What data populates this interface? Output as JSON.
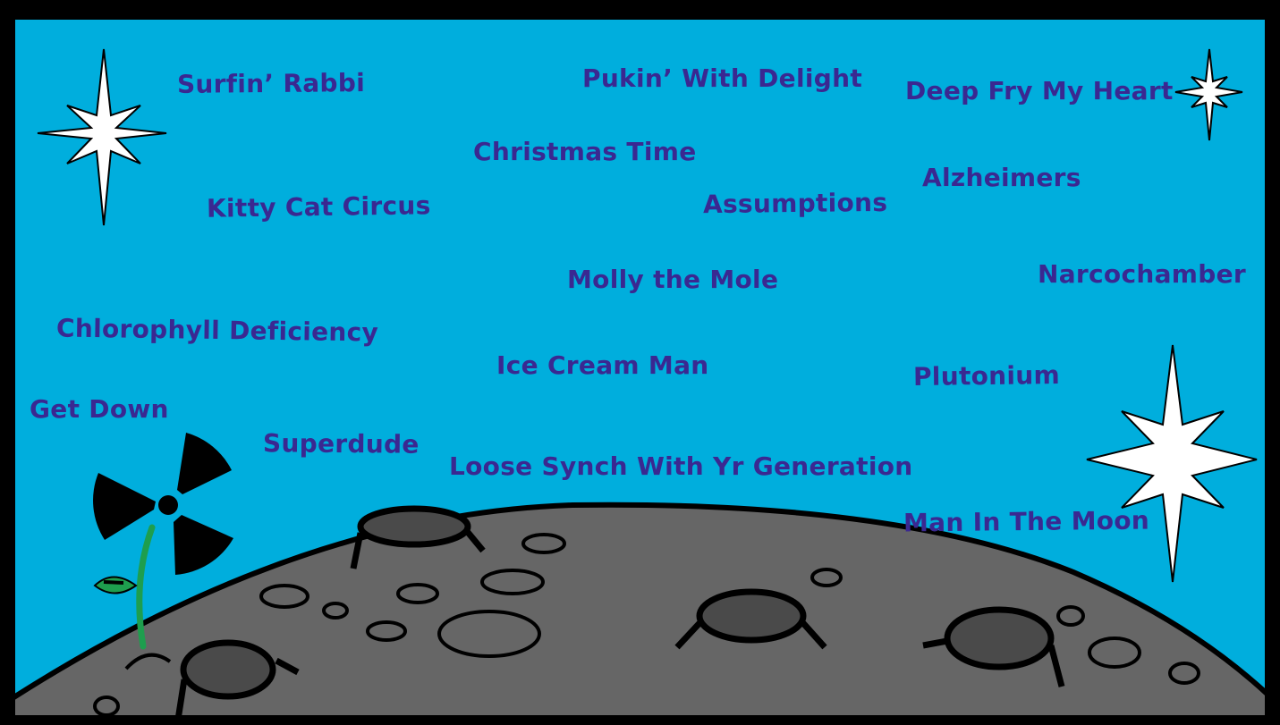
{
  "colors": {
    "sky": "#00AEDD",
    "frame": "#000000",
    "moon": "#666666",
    "crater": "#4A4A4A",
    "text": "#3A2891",
    "star": "#FFFFFF",
    "stem": "#1E9E4E"
  },
  "icons": [
    "star-icon",
    "radiation-flower-icon",
    "moon-icon",
    "crater-icon"
  ],
  "songs": [
    "Surfin’ Rabbi",
    "Pukin’ With Delight",
    "Deep Fry My Heart",
    "Christmas Time",
    "Alzheimers",
    "Kitty Cat Circus",
    "Assumptions",
    "Molly the Mole",
    "Narcochamber",
    "Chlorophyll Deficiency",
    "Ice Cream Man",
    "Plutonium",
    "Get Down",
    "Superdude",
    "Loose Synch With Yr Generation",
    "Man In The Moon"
  ]
}
